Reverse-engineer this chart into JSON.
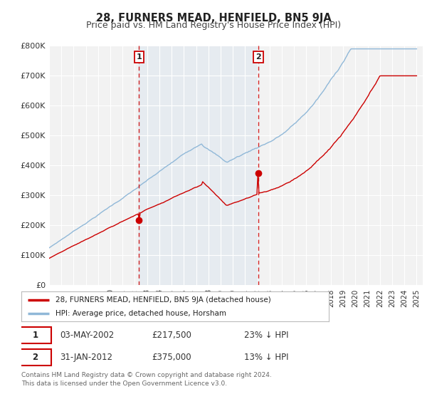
{
  "title": "28, FURNERS MEAD, HENFIELD, BN5 9JA",
  "subtitle": "Price paid vs. HM Land Registry's House Price Index (HPI)",
  "ylim": [
    0,
    800000
  ],
  "yticks": [
    0,
    100000,
    200000,
    300000,
    400000,
    500000,
    600000,
    700000,
    800000
  ],
  "ytick_labels": [
    "£0",
    "£100K",
    "£200K",
    "£300K",
    "£400K",
    "£500K",
    "£600K",
    "£700K",
    "£800K"
  ],
  "xlim_start": 1995.0,
  "xlim_end": 2025.5,
  "background_color": "#ffffff",
  "plot_bg_color": "#f2f2f2",
  "grid_color": "#ffffff",
  "hpi_color": "#90b8d8",
  "price_color": "#cc0000",
  "sale1_date": 2002.34,
  "sale1_price": 217500,
  "sale1_label": "1",
  "sale2_date": 2012.08,
  "sale2_price": 375000,
  "sale2_label": "2",
  "legend_label1": "28, FURNERS MEAD, HENFIELD, BN5 9JA (detached house)",
  "legend_label2": "HPI: Average price, detached house, Horsham",
  "table_row1": [
    "1",
    "03-MAY-2002",
    "£217,500",
    "23% ↓ HPI"
  ],
  "table_row2": [
    "2",
    "31-JAN-2012",
    "£375,000",
    "13% ↓ HPI"
  ],
  "footer_text": "Contains HM Land Registry data © Crown copyright and database right 2024.\nThis data is licensed under the Open Government Licence v3.0.",
  "title_fontsize": 10.5,
  "subtitle_fontsize": 9
}
